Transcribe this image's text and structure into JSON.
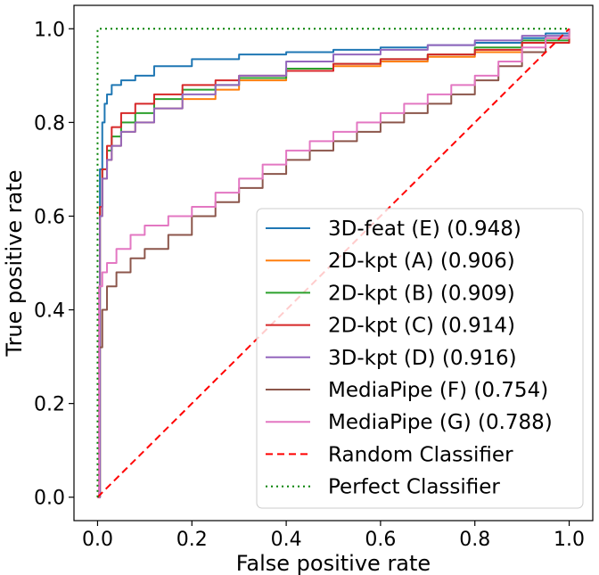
{
  "chart_data": {
    "type": "line",
    "title": "",
    "xlabel": "False positive rate",
    "ylabel": "True positive rate",
    "xlim": [
      -0.05,
      1.05
    ],
    "ylim": [
      -0.05,
      1.05
    ],
    "xticks": [
      "0.0",
      "0.2",
      "0.4",
      "0.6",
      "0.8",
      "1.0"
    ],
    "yticks": [
      "0.0",
      "0.2",
      "0.4",
      "0.6",
      "0.8",
      "1.0"
    ],
    "legend_position": "lower-right",
    "series": [
      {
        "name": "3D-feat (E) (0.948)",
        "color": "#1f77b4",
        "dash": "solid",
        "x": [
          0,
          0.005,
          0.01,
          0.015,
          0.02,
          0.03,
          0.05,
          0.08,
          0.12,
          0.2,
          0.3,
          0.4,
          0.5,
          0.6,
          0.7,
          0.8,
          0.9,
          0.95,
          1.0
        ],
        "y": [
          0,
          0.7,
          0.8,
          0.84,
          0.86,
          0.88,
          0.89,
          0.9,
          0.92,
          0.935,
          0.945,
          0.95,
          0.955,
          0.96,
          0.965,
          0.97,
          0.98,
          0.99,
          1.0
        ]
      },
      {
        "name": "2D-kpt (A) (0.906)",
        "color": "#ff7f0e",
        "dash": "solid",
        "x": [
          0,
          0.005,
          0.01,
          0.02,
          0.03,
          0.05,
          0.08,
          0.12,
          0.18,
          0.25,
          0.3,
          0.4,
          0.5,
          0.6,
          0.7,
          0.8,
          0.9,
          1.0
        ],
        "y": [
          0,
          0.6,
          0.68,
          0.72,
          0.75,
          0.78,
          0.8,
          0.83,
          0.85,
          0.87,
          0.89,
          0.91,
          0.92,
          0.93,
          0.94,
          0.95,
          0.97,
          1.0
        ]
      },
      {
        "name": "2D-kpt (B) (0.909)",
        "color": "#2ca02c",
        "dash": "solid",
        "x": [
          0,
          0.005,
          0.01,
          0.02,
          0.03,
          0.05,
          0.08,
          0.12,
          0.18,
          0.25,
          0.3,
          0.4,
          0.5,
          0.6,
          0.7,
          0.8,
          0.9,
          1.0
        ],
        "y": [
          0,
          0.62,
          0.7,
          0.74,
          0.77,
          0.8,
          0.82,
          0.85,
          0.87,
          0.88,
          0.895,
          0.915,
          0.925,
          0.935,
          0.945,
          0.96,
          0.975,
          1.0
        ]
      },
      {
        "name": "2D-kpt (C) (0.914)",
        "color": "#d62728",
        "dash": "solid",
        "x": [
          0,
          0.005,
          0.01,
          0.02,
          0.03,
          0.05,
          0.08,
          0.12,
          0.18,
          0.25,
          0.3,
          0.4,
          0.5,
          0.6,
          0.7,
          0.8,
          0.9,
          1.0
        ],
        "y": [
          0,
          0.62,
          0.7,
          0.75,
          0.79,
          0.82,
          0.84,
          0.86,
          0.88,
          0.89,
          0.9,
          0.91,
          0.925,
          0.935,
          0.945,
          0.955,
          0.97,
          1.0
        ]
      },
      {
        "name": "3D-kpt (D) (0.916)",
        "color": "#9467bd",
        "dash": "solid",
        "x": [
          0,
          0.005,
          0.01,
          0.02,
          0.03,
          0.05,
          0.08,
          0.12,
          0.18,
          0.25,
          0.3,
          0.4,
          0.5,
          0.6,
          0.7,
          0.8,
          0.9,
          1.0
        ],
        "y": [
          0,
          0.6,
          0.68,
          0.72,
          0.75,
          0.78,
          0.8,
          0.83,
          0.86,
          0.88,
          0.9,
          0.93,
          0.945,
          0.955,
          0.965,
          0.975,
          0.985,
          1.0
        ]
      },
      {
        "name": "MediaPipe (F) (0.754)",
        "color": "#8c564b",
        "dash": "solid",
        "x": [
          0,
          0.003,
          0.01,
          0.02,
          0.04,
          0.07,
          0.1,
          0.15,
          0.2,
          0.25,
          0.3,
          0.35,
          0.4,
          0.45,
          0.5,
          0.55,
          0.6,
          0.65,
          0.7,
          0.75,
          0.8,
          0.85,
          0.9,
          0.95,
          1.0
        ],
        "y": [
          0,
          0.32,
          0.4,
          0.45,
          0.48,
          0.51,
          0.53,
          0.56,
          0.6,
          0.63,
          0.66,
          0.69,
          0.72,
          0.74,
          0.76,
          0.78,
          0.8,
          0.82,
          0.84,
          0.86,
          0.89,
          0.92,
          0.95,
          0.98,
          1.0
        ]
      },
      {
        "name": "MediaPipe (G) (0.788)",
        "color": "#e377c2",
        "dash": "solid",
        "x": [
          0,
          0.003,
          0.01,
          0.02,
          0.04,
          0.07,
          0.1,
          0.15,
          0.2,
          0.25,
          0.3,
          0.35,
          0.4,
          0.45,
          0.5,
          0.55,
          0.6,
          0.65,
          0.7,
          0.75,
          0.8,
          0.85,
          0.9,
          0.95,
          1.0
        ],
        "y": [
          0,
          0.45,
          0.48,
          0.5,
          0.53,
          0.56,
          0.58,
          0.6,
          0.62,
          0.65,
          0.68,
          0.71,
          0.74,
          0.76,
          0.78,
          0.8,
          0.82,
          0.84,
          0.86,
          0.88,
          0.9,
          0.93,
          0.96,
          0.98,
          1.0
        ]
      },
      {
        "name": "Random Classifier",
        "color": "#ff0000",
        "dash": "dashed",
        "x": [
          0,
          1.0
        ],
        "y": [
          0,
          1.0
        ]
      },
      {
        "name": "Perfect Classifier",
        "color": "#008000",
        "dash": "dotted",
        "x": [
          0,
          0,
          1.0
        ],
        "y": [
          0,
          1.0,
          1.0
        ]
      }
    ]
  }
}
